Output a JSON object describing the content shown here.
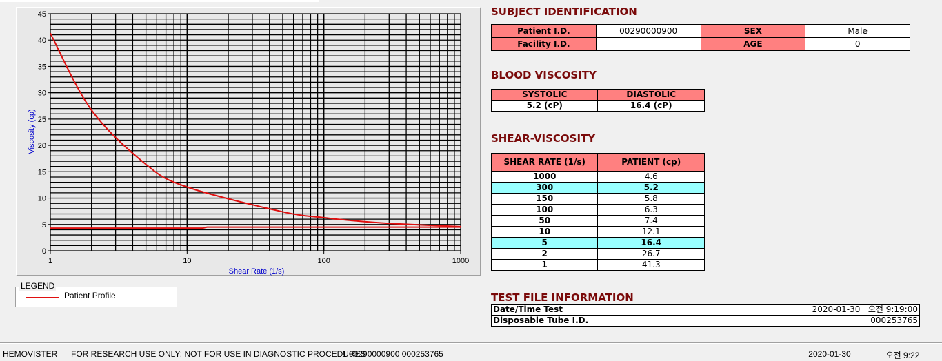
{
  "chart_data": {
    "type": "line",
    "xlabel": "Shear Rate (1/s)",
    "ylabel": "Viscosity (cp)",
    "xscale": "log",
    "xlim": [
      1,
      1000
    ],
    "ylim": [
      0,
      45
    ],
    "x_ticks": [
      "1",
      "10",
      "100",
      "1000"
    ],
    "y_ticks": [
      "0",
      "5",
      "10",
      "15",
      "20",
      "25",
      "30",
      "35",
      "40",
      "45"
    ],
    "grid": true,
    "series": [
      {
        "x": [
          1,
          2,
          5,
          10,
          50,
          100,
          150,
          300,
          1000
        ],
        "values": [
          41.3,
          26.7,
          16.4,
          12.1,
          7.4,
          6.3,
          5.8,
          5.2,
          4.6
        ],
        "color": "#e01010"
      },
      {
        "x": [
          1,
          13,
          14,
          1000
        ],
        "values": [
          4.3,
          4.3,
          4.5,
          4.5
        ],
        "color": "#e01010"
      }
    ]
  },
  "legend": {
    "title": "LEGEND",
    "items": [
      {
        "label": "Patient Profile",
        "color": "#e01010"
      }
    ]
  },
  "subject": {
    "title": "SUBJECT IDENTIFICATION",
    "patient_id_label": "Patient I.D.",
    "patient_id": "00290000900",
    "sex_label": "SEX",
    "sex": "Male",
    "facility_id_label": "Facility I.D.",
    "facility_id": "",
    "age_label": "AGE",
    "age": "0"
  },
  "blood_viscosity": {
    "title": "BLOOD VISCOSITY",
    "systolic_label": "SYSTOLIC",
    "systolic": "5.2 (cP)",
    "diastolic_label": "DIASTOLIC",
    "diastolic": "16.4 (cP)"
  },
  "shear_viscosity": {
    "title": "SHEAR-VISCOSITY",
    "headers": [
      "SHEAR RATE (1/s)",
      "PATIENT (cp)"
    ],
    "rows": [
      {
        "rate": "1000",
        "value": "4.6",
        "highlight": false
      },
      {
        "rate": "300",
        "value": "5.2",
        "highlight": true
      },
      {
        "rate": "150",
        "value": "5.8",
        "highlight": false
      },
      {
        "rate": "100",
        "value": "6.3",
        "highlight": false
      },
      {
        "rate": "50",
        "value": "7.4",
        "highlight": false
      },
      {
        "rate": "10",
        "value": "12.1",
        "highlight": false
      },
      {
        "rate": "5",
        "value": "16.4",
        "highlight": true
      },
      {
        "rate": "2",
        "value": "26.7",
        "highlight": false
      },
      {
        "rate": "1",
        "value": "41.3",
        "highlight": false
      }
    ],
    "highlight_color": "#99ffff"
  },
  "test_file": {
    "title": "TEST FILE INFORMATION",
    "datetime_label": "Date/Time Test",
    "datetime": "2020-01-30   오전 9:19:00",
    "tube_label": "Disposable Tube I.D.",
    "tube": "000253765"
  },
  "status_bar": {
    "app": "HEMOVISTER",
    "notice": "FOR RESEARCH USE ONLY: NOT FOR USE IN DIAGNOSTIC PROCEDURES",
    "record": "1  00290000900  000253765",
    "empty": "",
    "date": "2020-01-30",
    "time": "오전 9:22"
  }
}
